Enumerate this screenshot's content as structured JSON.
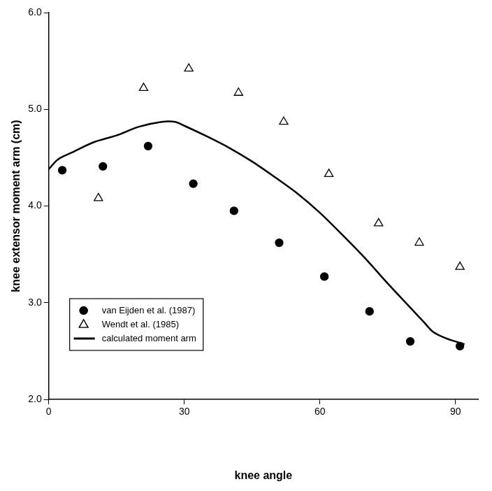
{
  "chart_data": {
    "type": "scatter",
    "x_label": "knee angle",
    "y_label": "knee extensor moment arm (cm)",
    "xlim": [
      0,
      95
    ],
    "xticks": [
      0,
      30,
      60,
      90
    ],
    "ylim": [
      2,
      6
    ],
    "yticks": [
      {
        "value": 2,
        "label": "2.0"
      },
      {
        "value": 3,
        "label": "3.0"
      },
      {
        "value": 4,
        "label": "4.0"
      },
      {
        "value": 5,
        "label": "5.0"
      },
      {
        "value": 6,
        "label": "6.0"
      }
    ],
    "grid": false,
    "legend": "lower left",
    "series": [
      {
        "name": "van Eijden et al. (1987)",
        "type": "scatter",
        "marker": "circle",
        "color": "#000000",
        "x": [
          3,
          12,
          22,
          32,
          41,
          51,
          61,
          71,
          80,
          91
        ],
        "values": [
          4.37,
          4.41,
          4.62,
          4.23,
          3.95,
          3.62,
          3.27,
          2.91,
          2.6,
          2.55
        ]
      },
      {
        "name": "Wendt et al. (1985)",
        "type": "scatter",
        "marker": "open_triangle",
        "color": "#000000",
        "x": [
          11,
          21,
          31,
          42,
          52,
          62,
          73,
          82,
          91
        ],
        "values": [
          4.08,
          5.22,
          5.42,
          5.17,
          4.87,
          4.33,
          3.82,
          3.62,
          3.37
        ]
      },
      {
        "name": "calculated moment arm",
        "type": "line",
        "line_style": "solid",
        "color": "#000000",
        "x": [
          0,
          2,
          5,
          10,
          15,
          20,
          25,
          28,
          30,
          35,
          40,
          45,
          50,
          55,
          60,
          65,
          70,
          75,
          80,
          83,
          85,
          88,
          92
        ],
        "values": [
          4.38,
          4.48,
          4.55,
          4.66,
          4.73,
          4.82,
          4.87,
          4.87,
          4.83,
          4.72,
          4.6,
          4.46,
          4.3,
          4.13,
          3.93,
          3.7,
          3.46,
          3.2,
          2.95,
          2.8,
          2.7,
          2.63,
          2.57
        ]
      }
    ]
  }
}
